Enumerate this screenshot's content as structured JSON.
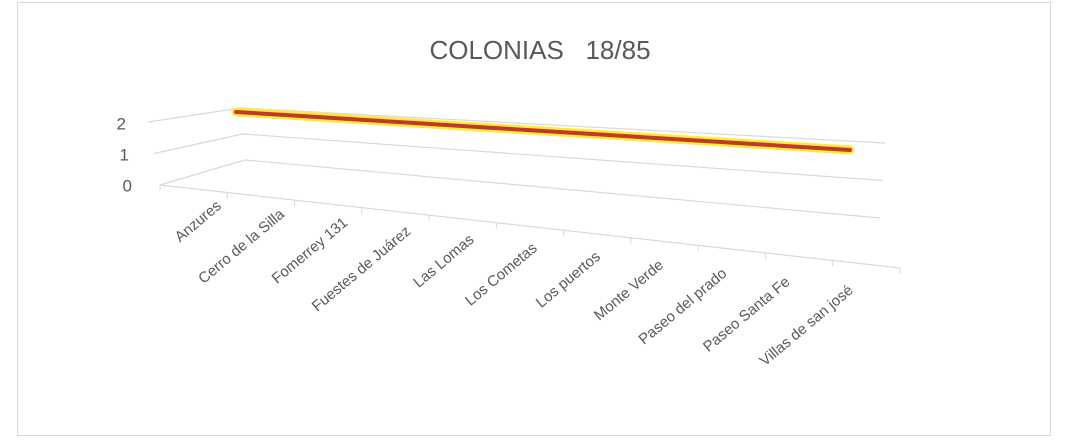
{
  "chart_data": {
    "type": "line",
    "title": "COLONIAS   18/85",
    "categories": [
      "Anzures",
      "Cerro de la Silla",
      "Fomerrey 131",
      "Fuestes de Juárez",
      "Las Lomas",
      "Los Cometas",
      "Los puertos",
      "Monte Verde",
      "Paseo del prado",
      "Paseo Santa Fe",
      "Villas de san josé"
    ],
    "series": [
      {
        "name": "COLONIAS",
        "color": "#c0392b",
        "values": [
          2,
          2,
          2,
          2,
          2,
          2,
          2,
          2,
          2,
          2,
          2
        ]
      }
    ],
    "ylim": [
      0,
      2
    ],
    "yticks": [
      0,
      1,
      2
    ],
    "grid": true
  }
}
